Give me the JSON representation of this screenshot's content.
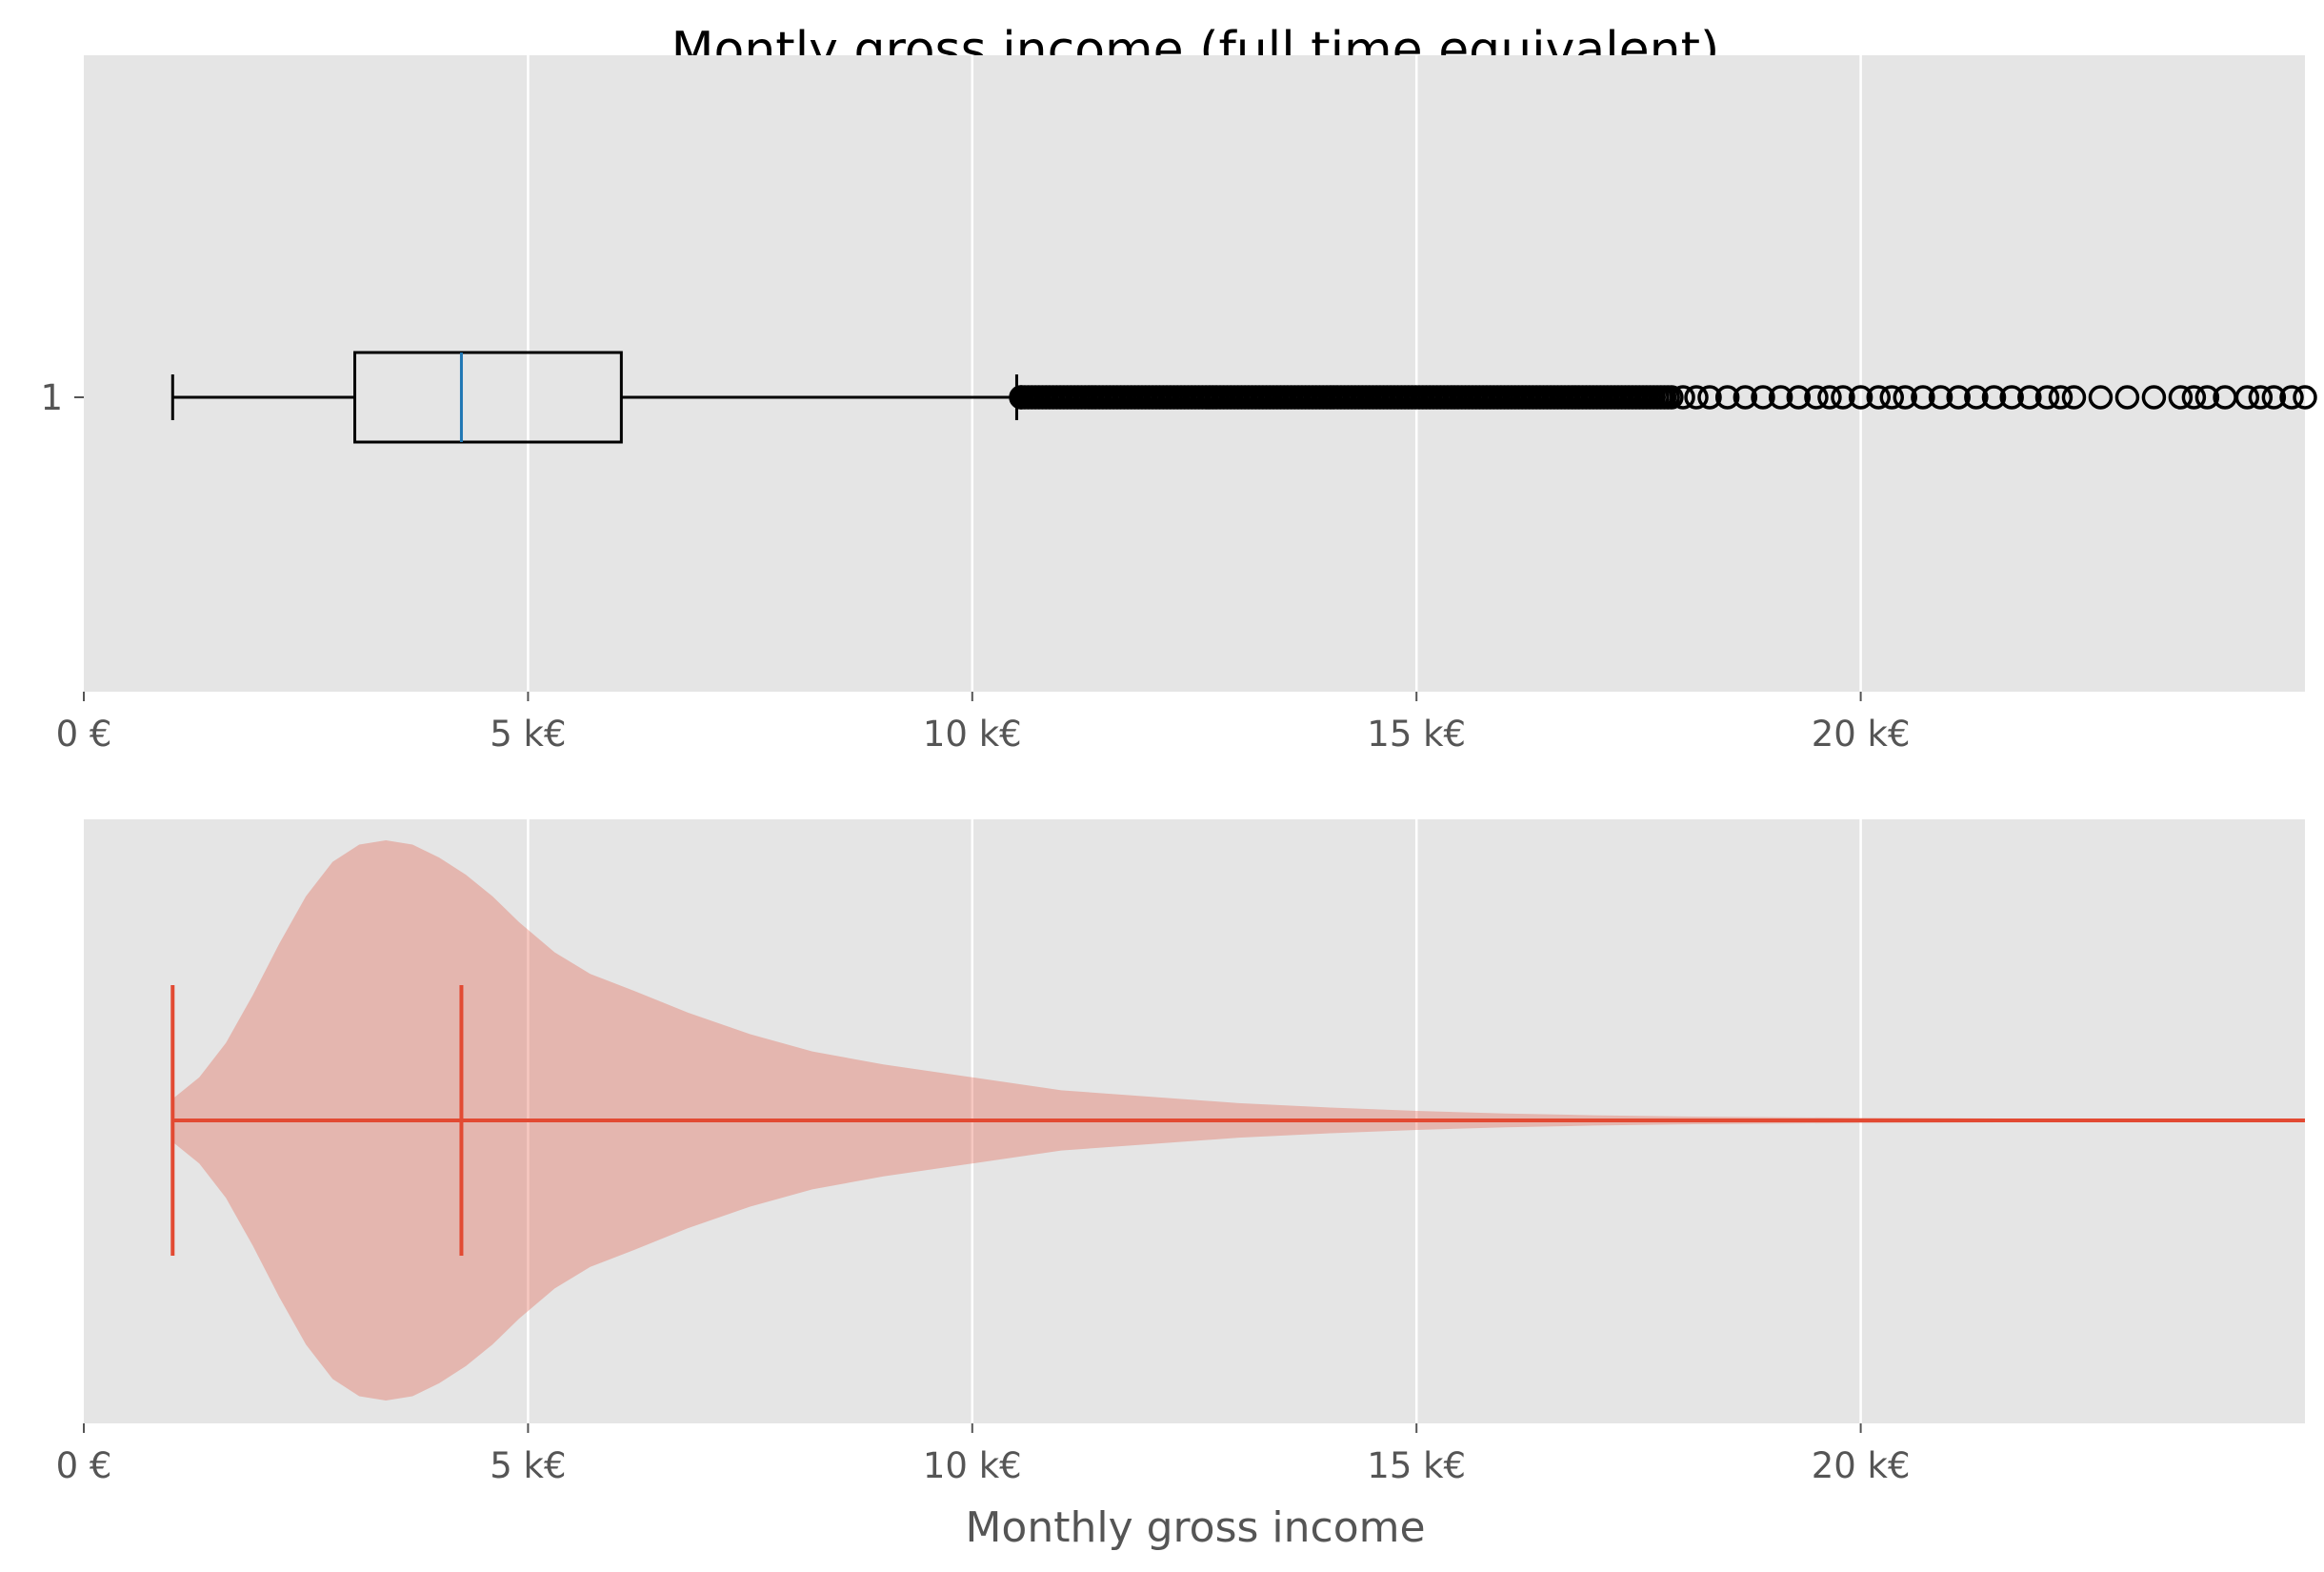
{
  "chart_data": [
    {
      "type": "box",
      "title": "Montly gross income (full time equivalent)",
      "xlabel": "",
      "ylabel": "",
      "xlim": [
        0,
        25000
      ],
      "y_tick_labels": [
        "1"
      ],
      "x_ticks": [
        0,
        5000,
        10000,
        15000,
        20000
      ],
      "x_tick_labels": [
        "0 €",
        "5 k€",
        "10 k€",
        "15 k€",
        "20 k€"
      ],
      "grid": true,
      "box": {
        "whisker_low": 1000,
        "q1": 3050,
        "median": 4250,
        "q3": 6050,
        "whisker_high": 10500
      },
      "outliers_dense_range": [
        10550,
        17900
      ],
      "outliers": [
        18000,
        18150,
        18300,
        18500,
        18700,
        18900,
        19100,
        19300,
        19500,
        19650,
        19800,
        20000,
        20200,
        20350,
        20500,
        20700,
        20900,
        21100,
        21300,
        21500,
        21700,
        21900,
        22100,
        22250,
        22400,
        22700,
        23000,
        23300,
        23600,
        23750,
        23900,
        24100,
        24350,
        24500,
        24650,
        24850,
        25000
      ],
      "colors": {
        "box": "#000000",
        "median": "#1f77b4",
        "background": "#e5e5e5",
        "grid": "#ffffff"
      }
    },
    {
      "type": "violin",
      "title": "",
      "xlabel": "Monthly gross income",
      "ylabel": "",
      "xlim": [
        0,
        25000
      ],
      "x_ticks": [
        0,
        5000,
        10000,
        15000,
        20000
      ],
      "x_tick_labels": [
        "0 €",
        "5 k€",
        "10 k€",
        "15 k€",
        "20 k€"
      ],
      "grid": true,
      "min": 1000,
      "median": 4250,
      "max": 25000,
      "density": {
        "x": [
          1000,
          1300,
          1600,
          1900,
          2200,
          2500,
          2800,
          3100,
          3400,
          3700,
          4000,
          4300,
          4600,
          4900,
          5300,
          5700,
          6200,
          6800,
          7500,
          8200,
          9000,
          10000,
          11000,
          12000,
          13000,
          14000,
          15000,
          16000,
          17000,
          18000,
          20000,
          22000,
          25000
        ],
        "width": [
          0.05,
          0.1,
          0.18,
          0.29,
          0.41,
          0.52,
          0.6,
          0.64,
          0.65,
          0.64,
          0.61,
          0.57,
          0.52,
          0.46,
          0.39,
          0.34,
          0.3,
          0.25,
          0.2,
          0.16,
          0.13,
          0.1,
          0.07,
          0.055,
          0.04,
          0.03,
          0.022,
          0.016,
          0.012,
          0.009,
          0.006,
          0.004,
          0.002
        ]
      },
      "colors": {
        "body": "#e24a33",
        "lines": "#e24a33",
        "background": "#e5e5e5",
        "grid": "#ffffff"
      }
    }
  ]
}
